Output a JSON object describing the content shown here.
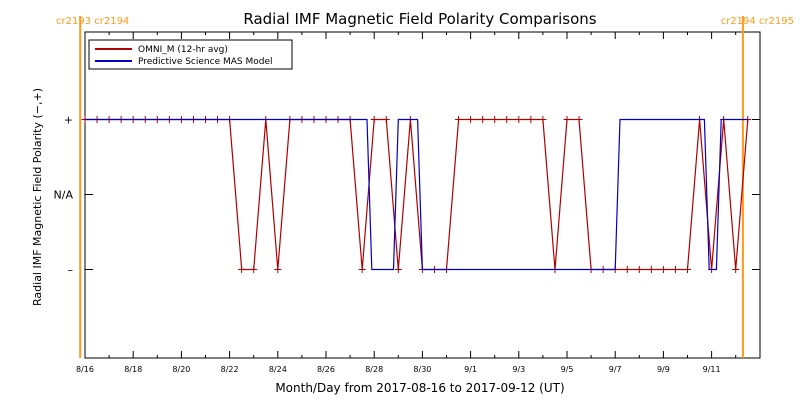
{
  "chart_data": {
    "type": "line",
    "title": "Radial IMF Magnetic Field Polarity Comparisons",
    "xlabel": "Month/Day from 2017-08-16 to 2017-09-12 (UT)",
    "ylabel": "Radial IMF Magnetic Field Polarity (−,+)",
    "xlim": [
      0,
      27.5
    ],
    "ylim": [
      -2,
      2
    ],
    "x_ticks": [
      {
        "day": 0,
        "label": "8/16"
      },
      {
        "day": 2,
        "label": "8/18"
      },
      {
        "day": 4,
        "label": "8/20"
      },
      {
        "day": 6,
        "label": "8/22"
      },
      {
        "day": 8,
        "label": "8/24"
      },
      {
        "day": 10,
        "label": "8/26"
      },
      {
        "day": 12,
        "label": "8/28"
      },
      {
        "day": 14,
        "label": "8/30"
      },
      {
        "day": 16,
        "label": "9/1"
      },
      {
        "day": 18,
        "label": "9/3"
      },
      {
        "day": 20,
        "label": "9/5"
      },
      {
        "day": 22,
        "label": "9/7"
      },
      {
        "day": 24,
        "label": "9/9"
      },
      {
        "day": 26,
        "label": "9/11"
      }
    ],
    "y_ticks": [
      {
        "value": 1,
        "label": "+"
      },
      {
        "value": 0,
        "label": "N/A"
      },
      {
        "value": -1,
        "label": "–"
      }
    ],
    "legend": {
      "placement": "top-left",
      "entries": [
        {
          "label": "OMNI_M (12-hr avg)",
          "color": "#b00000"
        },
        {
          "label": "Predictive Science MAS Model",
          "color": "#0000c8"
        }
      ]
    },
    "series": [
      {
        "color": "#b00000",
        "marker": "plus",
        "x": [
          0,
          0.5,
          1,
          1.5,
          2,
          2.5,
          3,
          3.5,
          4,
          4.5,
          5,
          5.5,
          6,
          6.5,
          7,
          7.5,
          8,
          8.5,
          9,
          9.5,
          10,
          10.5,
          11,
          11.5,
          12,
          12.5,
          13,
          13.5,
          14,
          14.5,
          15,
          15.5,
          16,
          16.5,
          17,
          17.5,
          18,
          18.5,
          19,
          19.5,
          20,
          20.5,
          21,
          21.5,
          22,
          22.5,
          23,
          23.5,
          24,
          24.5,
          25,
          25.5,
          26,
          26.5,
          27,
          27.5
        ],
        "y": [
          1,
          1,
          1,
          1,
          1,
          1,
          1,
          1,
          1,
          1,
          1,
          1,
          1,
          -1,
          -1,
          1,
          -1,
          1,
          1,
          1,
          1,
          1,
          1,
          -1,
          1,
          1,
          -1,
          1,
          -1,
          -1,
          -1,
          1,
          1,
          1,
          1,
          1,
          1,
          1,
          1,
          -1,
          1,
          1,
          -1,
          -1,
          -1,
          -1,
          -1,
          -1,
          -1,
          -1,
          -1,
          1,
          -1,
          1,
          -1,
          1
        ]
      },
      {
        "color": "#0000c8",
        "marker": "none",
        "x": [
          0,
          11.7,
          11.9,
          12.8,
          13.0,
          13.8,
          14.0,
          22.0,
          22.2,
          25.7,
          25.9,
          26.2,
          26.4,
          27.5
        ],
        "y": [
          1,
          1,
          -1,
          -1,
          1,
          1,
          -1,
          -1,
          1,
          1,
          -1,
          -1,
          1,
          1
        ]
      }
    ],
    "carrington": {
      "color": "#ff9a1a",
      "left_label": "cr2193 cr2194",
      "right_label": "cr2194 cr2195",
      "marker_days": [
        -0.2,
        27.3
      ]
    },
    "grid": false
  }
}
